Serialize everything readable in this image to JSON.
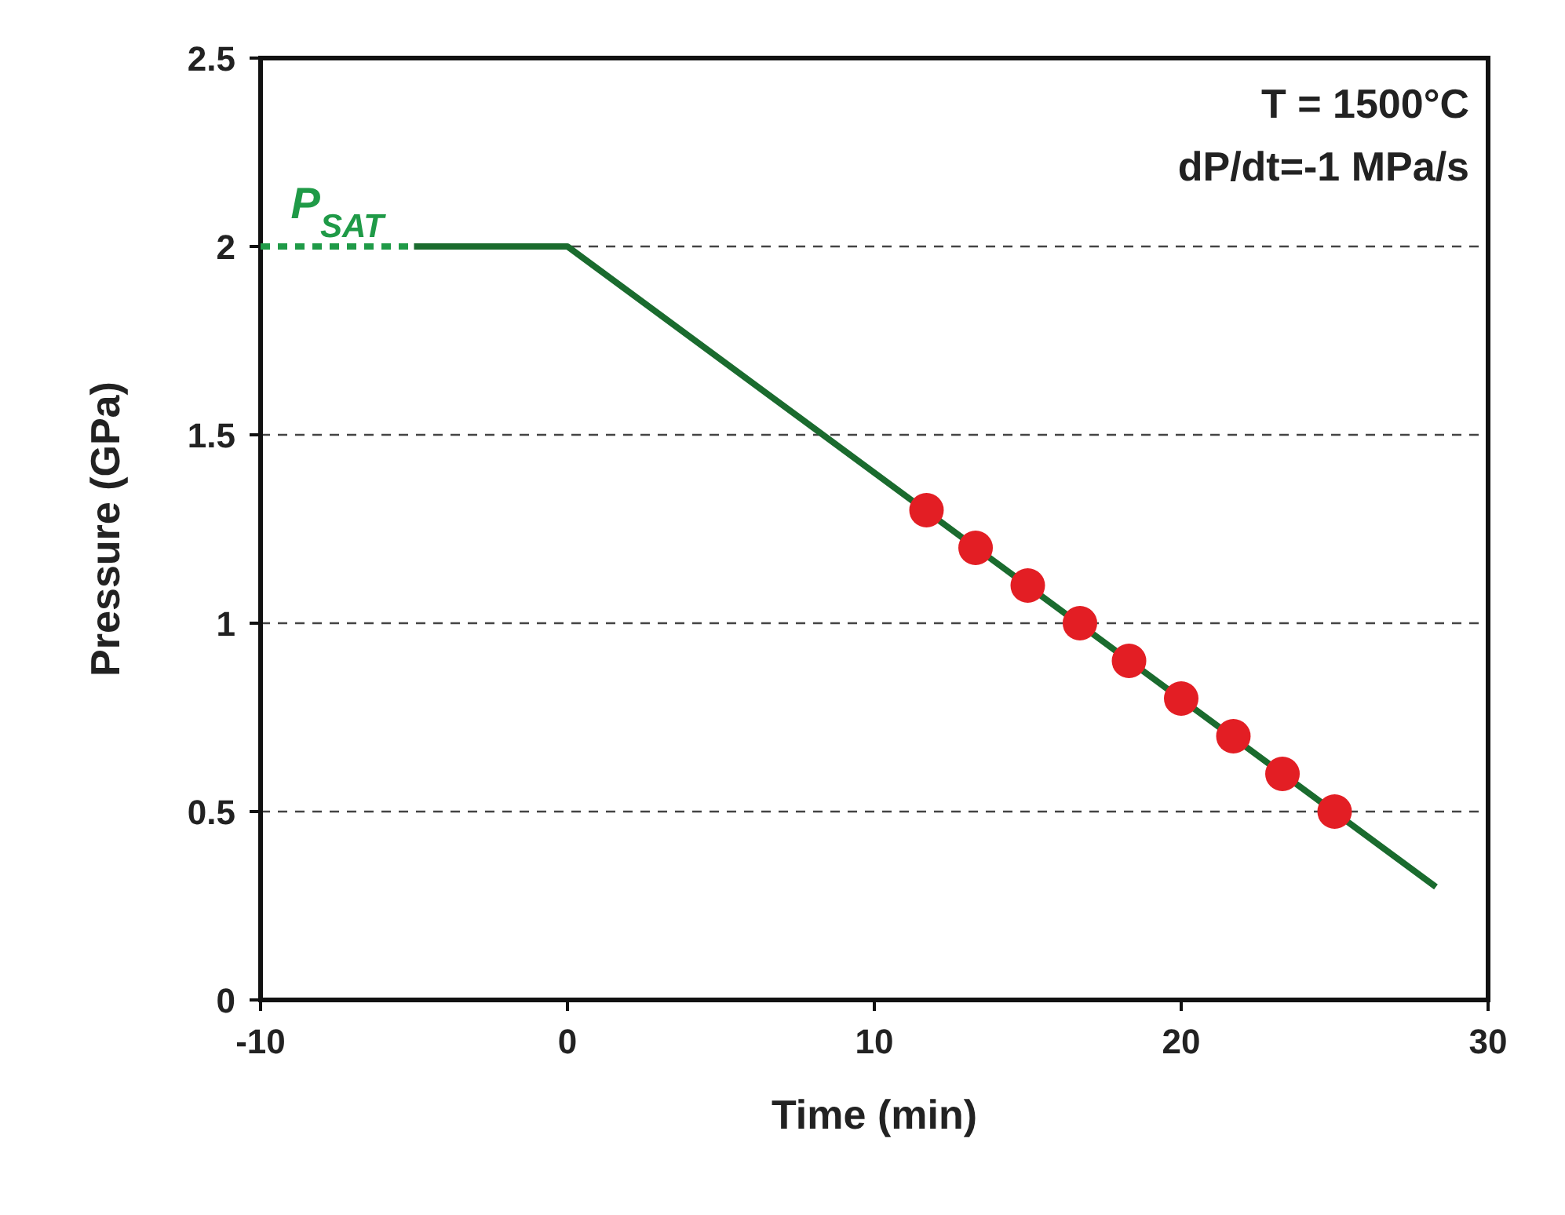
{
  "chart_data": {
    "type": "line",
    "xlabel": "Time (min)",
    "ylabel": "Pressure (GPa)",
    "xlim": [
      -10,
      30
    ],
    "xticks": [
      -10,
      0,
      10,
      20,
      30
    ],
    "ylim": [
      0,
      2.5
    ],
    "yticks": [
      0,
      0.5,
      1,
      1.5,
      2,
      2.5
    ],
    "grid": "y",
    "series": [
      {
        "color": "#1f9a47",
        "line_style": "dashed",
        "marker": "none",
        "x": [
          -10,
          -5
        ],
        "values": [
          2,
          2
        ]
      },
      {
        "color": "#1a6b2e",
        "line_style": "solid",
        "marker": "none",
        "x": [
          -5,
          0,
          28.3
        ],
        "values": [
          2,
          2,
          0.3
        ]
      },
      {
        "type": "scatter",
        "color": "#e31e24",
        "marker": "circle",
        "x": [
          11.7,
          13.3,
          15,
          16.7,
          18.3,
          20,
          21.7,
          23.3,
          25
        ],
        "values": [
          1.3,
          1.2,
          1.1,
          1,
          0.9,
          0.8,
          0.7,
          0.6,
          0.5
        ]
      }
    ],
    "annotations": [
      "T = 1500°C",
      "dP/dt=-1 MPa/s",
      {
        "text": "P$_{SAT}$",
        "x": -7.5,
        "y": 2
      }
    ]
  }
}
